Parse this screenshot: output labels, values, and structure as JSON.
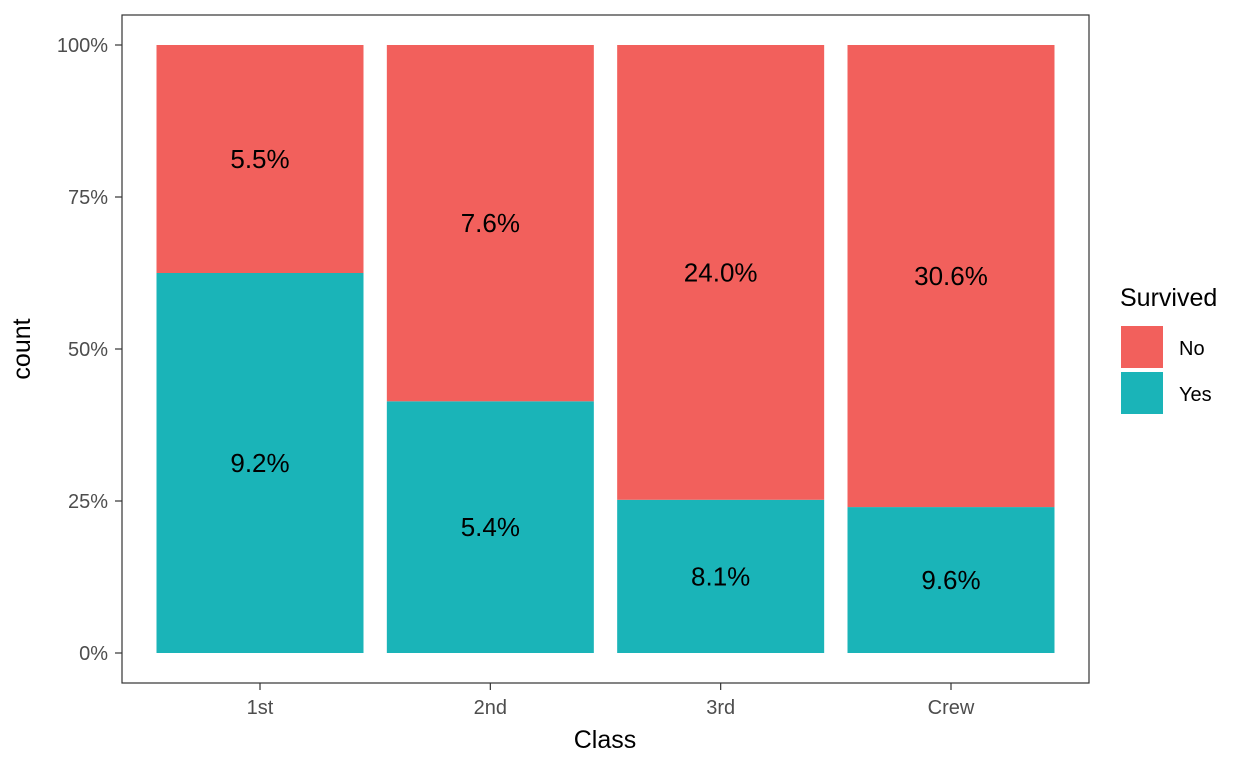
{
  "chart_data": {
    "type": "bar",
    "stacked": true,
    "normalized": true,
    "title": "",
    "xlabel": "Class",
    "ylabel": "count",
    "categories": [
      "1st",
      "2nd",
      "3rd",
      "Crew"
    ],
    "y_ticks": [
      "0%",
      "25%",
      "50%",
      "75%",
      "100%"
    ],
    "ylim": [
      0,
      1
    ],
    "grid": false,
    "legend": {
      "title": "Survived",
      "position": "right",
      "entries": [
        "No",
        "Yes"
      ]
    },
    "series": [
      {
        "name": "No",
        "color": "#F8766D",
        "fill": "#F2605C",
        "values": [
          0.375,
          0.586,
          0.748,
          0.76
        ],
        "labels": [
          "5.5%",
          "7.6%",
          "24.0%",
          "30.6%"
        ]
      },
      {
        "name": "Yes",
        "color": "#00BFC4",
        "fill": "#1AB4B8",
        "values": [
          0.625,
          0.414,
          0.252,
          0.24
        ],
        "labels": [
          "9.2%",
          "5.4%",
          "8.1%",
          "9.6%"
        ]
      }
    ]
  }
}
